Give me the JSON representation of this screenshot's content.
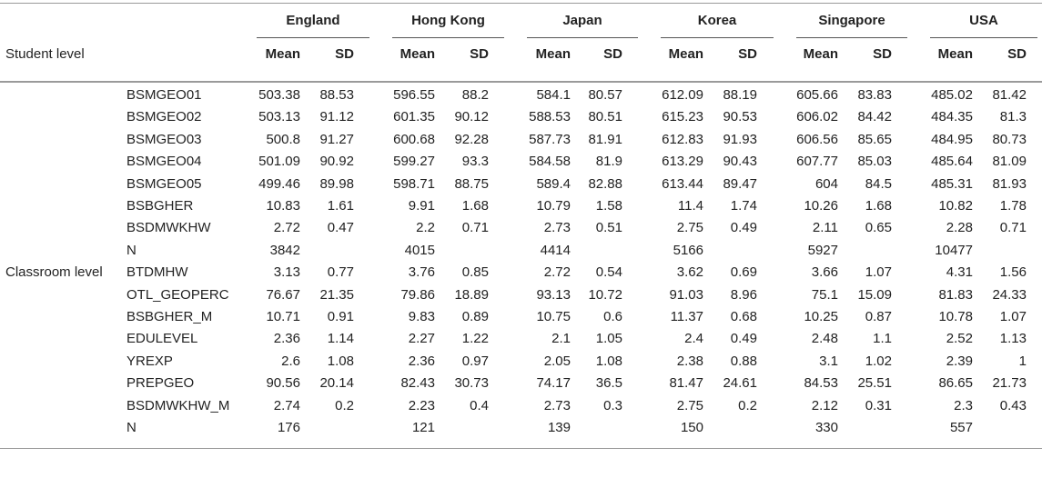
{
  "stub_header": "Student level",
  "countries": [
    "England",
    "Hong Kong",
    "Japan",
    "Korea",
    "Singapore",
    "USA"
  ],
  "stat_labels": [
    "Mean",
    "SD"
  ],
  "rows": [
    {
      "group": "",
      "name": "BSMGEO01",
      "cells": [
        "503.38",
        "88.53",
        "596.55",
        "88.2",
        "584.1",
        "80.57",
        "612.09",
        "88.19",
        "605.66",
        "83.83",
        "485.02",
        "81.42"
      ]
    },
    {
      "group": "",
      "name": "BSMGEO02",
      "cells": [
        "503.13",
        "91.12",
        "601.35",
        "90.12",
        "588.53",
        "80.51",
        "615.23",
        "90.53",
        "606.02",
        "84.42",
        "484.35",
        "81.3"
      ]
    },
    {
      "group": "",
      "name": "BSMGEO03",
      "cells": [
        "500.8",
        "91.27",
        "600.68",
        "92.28",
        "587.73",
        "81.91",
        "612.83",
        "91.93",
        "606.56",
        "85.65",
        "484.95",
        "80.73"
      ]
    },
    {
      "group": "",
      "name": "BSMGEO04",
      "cells": [
        "501.09",
        "90.92",
        "599.27",
        "93.3",
        "584.58",
        "81.9",
        "613.29",
        "90.43",
        "607.77",
        "85.03",
        "485.64",
        "81.09"
      ]
    },
    {
      "group": "",
      "name": "BSMGEO05",
      "cells": [
        "499.46",
        "89.98",
        "598.71",
        "88.75",
        "589.4",
        "82.88",
        "613.44",
        "89.47",
        "604",
        "84.5",
        "485.31",
        "81.93"
      ]
    },
    {
      "group": "",
      "name": "BSBGHER",
      "cells": [
        "10.83",
        "1.61",
        "9.91",
        "1.68",
        "10.79",
        "1.58",
        "11.4",
        "1.74",
        "10.26",
        "1.68",
        "10.82",
        "1.78"
      ]
    },
    {
      "group": "",
      "name": "BSDMWKHW",
      "cells": [
        "2.72",
        "0.47",
        "2.2",
        "0.71",
        "2.73",
        "0.51",
        "2.75",
        "0.49",
        "2.11",
        "0.65",
        "2.28",
        "0.71"
      ]
    },
    {
      "group": "",
      "name": "N",
      "cells": [
        "3842",
        "",
        "4015",
        "",
        "4414",
        "",
        "5166",
        "",
        "5927",
        "",
        "10477",
        ""
      ]
    },
    {
      "group": "Classroom level",
      "name": "BTDMHW",
      "cells": [
        "3.13",
        "0.77",
        "3.76",
        "0.85",
        "2.72",
        "0.54",
        "3.62",
        "0.69",
        "3.66",
        "1.07",
        "4.31",
        "1.56"
      ]
    },
    {
      "group": "",
      "name": "OTL_GEOPERC",
      "cells": [
        "76.67",
        "21.35",
        "79.86",
        "18.89",
        "93.13",
        "10.72",
        "91.03",
        "8.96",
        "75.1",
        "15.09",
        "81.83",
        "24.33"
      ]
    },
    {
      "group": "",
      "name": "BSBGHER_M",
      "cells": [
        "10.71",
        "0.91",
        "9.83",
        "0.89",
        "10.75",
        "0.6",
        "11.37",
        "0.68",
        "10.25",
        "0.87",
        "10.78",
        "1.07"
      ]
    },
    {
      "group": "",
      "name": "EDULEVEL",
      "cells": [
        "2.36",
        "1.14",
        "2.27",
        "1.22",
        "2.1",
        "1.05",
        "2.4",
        "0.49",
        "2.48",
        "1.1",
        "2.52",
        "1.13"
      ]
    },
    {
      "group": "",
      "name": "YREXP",
      "cells": [
        "2.6",
        "1.08",
        "2.36",
        "0.97",
        "2.05",
        "1.08",
        "2.38",
        "0.88",
        "3.1",
        "1.02",
        "2.39",
        "1"
      ]
    },
    {
      "group": "",
      "name": "PREPGEO",
      "cells": [
        "90.56",
        "20.14",
        "82.43",
        "30.73",
        "74.17",
        "36.5",
        "81.47",
        "24.61",
        "84.53",
        "25.51",
        "86.65",
        "21.73"
      ]
    },
    {
      "group": "",
      "name": "BSDMWKHW_M",
      "cells": [
        "2.74",
        "0.2",
        "2.23",
        "0.4",
        "2.73",
        "0.3",
        "2.75",
        "0.2",
        "2.12",
        "0.31",
        "2.3",
        "0.43"
      ]
    },
    {
      "group": "",
      "name": "N",
      "cells": [
        "176",
        "",
        "121",
        "",
        "139",
        "",
        "150",
        "",
        "330",
        "",
        "557",
        ""
      ]
    }
  ]
}
